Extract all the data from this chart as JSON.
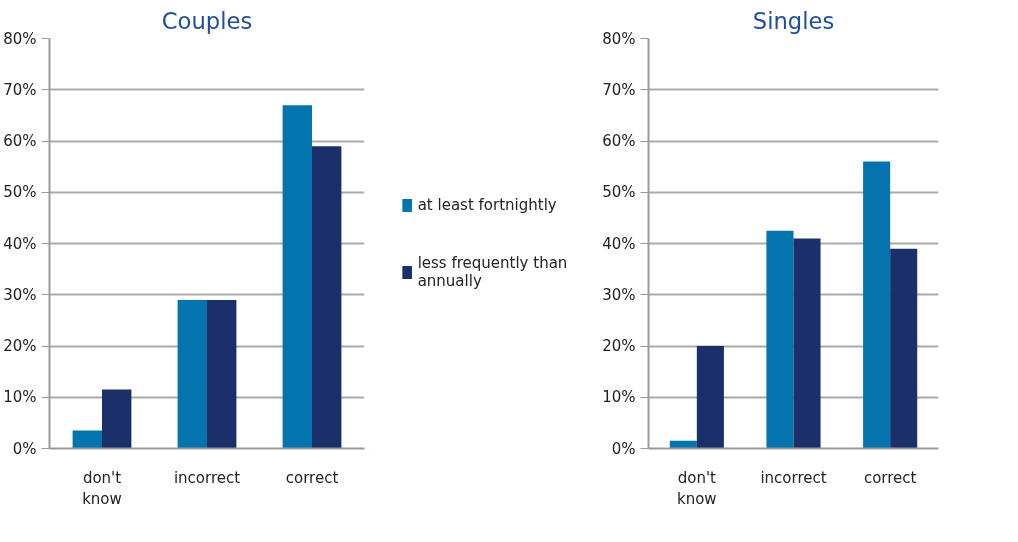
{
  "chart_data": [
    {
      "type": "bar",
      "title": "Couples",
      "categories": [
        "don't know",
        "incorrect",
        "correct"
      ],
      "series": [
        {
          "name": "at least fortnightly",
          "color": "#0474ae",
          "values": [
            3.5,
            29,
            67
          ]
        },
        {
          "name": "less frequently than annually",
          "color": "#1b2f6b",
          "values": [
            11.5,
            29,
            59
          ]
        }
      ],
      "ylim": [
        0,
        80
      ],
      "yticks": [
        {
          "value": 0,
          "label": "0%"
        },
        {
          "value": 10,
          "label": "10%"
        },
        {
          "value": 20,
          "label": "20%"
        },
        {
          "value": 30,
          "label": "30%"
        },
        {
          "value": 40,
          "label": "40%"
        },
        {
          "value": 50,
          "label": "50%"
        },
        {
          "value": 60,
          "label": "60%"
        },
        {
          "value": 70,
          "label": "70%"
        },
        {
          "value": 80,
          "label": "80%"
        }
      ],
      "grid": "y",
      "legend": "right"
    },
    {
      "type": "bar",
      "title": "Singles",
      "categories": [
        "don't know",
        "incorrect",
        "correct"
      ],
      "series": [
        {
          "color": "#0474ae",
          "values": [
            1.5,
            42.5,
            56
          ]
        },
        {
          "color": "#1b2f6b",
          "values": [
            20,
            41,
            39
          ]
        }
      ],
      "ylim": [
        0,
        80
      ],
      "yticks": [
        {
          "value": 0,
          "label": "0%"
        },
        {
          "value": 10,
          "label": "10%"
        },
        {
          "value": 20,
          "label": "20%"
        },
        {
          "value": 30,
          "label": "30%"
        },
        {
          "value": 40,
          "label": "40%"
        },
        {
          "value": 50,
          "label": "50%"
        },
        {
          "value": 60,
          "label": "60%"
        },
        {
          "value": 70,
          "label": "70%"
        },
        {
          "value": 80,
          "label": "80%"
        }
      ],
      "grid": "y"
    }
  ]
}
